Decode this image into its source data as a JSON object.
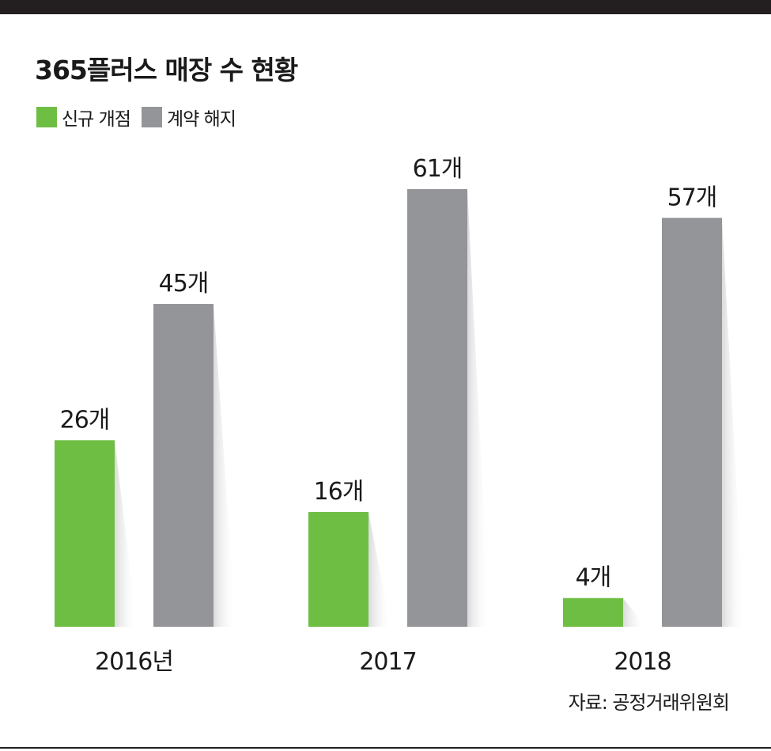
{
  "title": "365플러스 매장 수 현황",
  "legend": {
    "new": {
      "label": "신규 개점",
      "color": "#6fbe44"
    },
    "closed": {
      "label": "계약 해지",
      "color": "#939598"
    }
  },
  "source": "자료: 공정거래위원회",
  "chart_data": {
    "type": "bar",
    "categories": [
      "2016년",
      "2017",
      "2018"
    ],
    "series": [
      {
        "name": "신규 개점",
        "values": [
          26,
          16,
          4
        ],
        "labels": [
          "26개",
          "16개",
          "4개"
        ],
        "color": "#6fbe44"
      },
      {
        "name": "계약 해지",
        "values": [
          45,
          61,
          57
        ],
        "labels": [
          "45개",
          "61개",
          "57개"
        ],
        "color": "#939598"
      }
    ],
    "ylim": [
      0,
      65
    ],
    "grid": false,
    "legend_position": "top-left"
  }
}
